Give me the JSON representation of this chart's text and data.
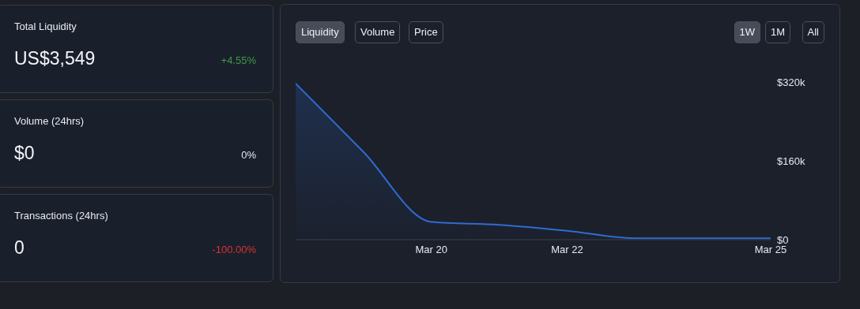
{
  "chart_data": [
    {
      "type": "other",
      "title": "Total Liquidity",
      "annotations": [
        "US$3,549",
        "+4.55%"
      ],
      "colors": [
        "#f2f4f7",
        "#3f9a45"
      ]
    },
    {
      "type": "other",
      "title": "Volume (24hrs)",
      "annotations": [
        "$0",
        "0%"
      ],
      "colors": [
        "#f2f4f7",
        "#e6e8ec"
      ]
    },
    {
      "type": "other",
      "title": "Transactions (24hrs)",
      "annotations": [
        "0",
        "-100.00%"
      ],
      "colors": [
        "#f2f4f7",
        "#d9342f"
      ]
    },
    {
      "type": "area",
      "x": [
        "--03-18",
        "--03-19",
        "--03-20",
        "--03-21",
        "--03-22",
        "--03-23",
        "--03-24",
        "--03-25"
      ],
      "values": [
        317000,
        178000,
        36000,
        30000,
        18000,
        3000,
        3000,
        3000
      ],
      "color": "#2f6bd0",
      "xlim": [
        "--03-18",
        "--03-25"
      ],
      "xticks": [
        {
          "value": "--03-20",
          "label": "Mar 20"
        },
        {
          "value": "--03-22",
          "label": "Mar 22"
        },
        {
          "value": "--03-25",
          "label": "Mar 25"
        }
      ],
      "ylim": [
        0,
        320000
      ],
      "yticks": [
        {
          "value": 0,
          "label": "$0"
        },
        {
          "value": 160000,
          "label": "$160k"
        },
        {
          "value": 320000,
          "label": "$320k"
        }
      ],
      "grid": false,
      "legend": false,
      "annotations": [
        "Liquidity",
        "Volume",
        "Price",
        "1W",
        "1M",
        "All"
      ]
    }
  ]
}
